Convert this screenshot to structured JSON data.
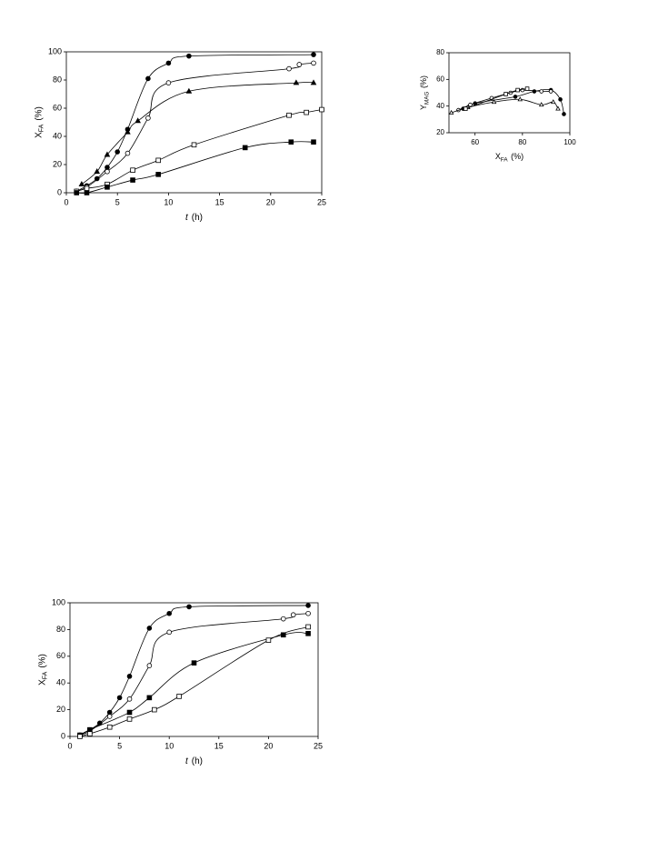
{
  "chart_data": [
    {
      "type": "line",
      "xlabel": {
        "main": "t",
        "unit": "(h)"
      },
      "ylabel": {
        "main": "X",
        "sub": "FA",
        "unit": "(%)"
      },
      "xlim": [
        0,
        25
      ],
      "xticks": [
        0,
        5,
        10,
        15,
        20,
        25
      ],
      "ylim": [
        0,
        100
      ],
      "yticks": [
        0,
        20,
        40,
        60,
        80,
        100
      ],
      "series": [
        {
          "marker": "circle",
          "filled": true,
          "color": "#000000",
          "x": [
            1,
            2,
            3,
            4,
            5,
            6,
            8,
            10,
            12,
            24.2
          ],
          "values": [
            1,
            5,
            10,
            18,
            29,
            45,
            81,
            92,
            97,
            98
          ]
        },
        {
          "marker": "circle",
          "filled": false,
          "color": "#000000",
          "x": [
            1,
            2,
            4,
            6,
            8,
            10,
            21.8,
            22.8,
            24.2
          ],
          "values": [
            1,
            4,
            15,
            28,
            53,
            78,
            88,
            91,
            92
          ]
        },
        {
          "marker": "triangle",
          "filled": true,
          "color": "#000000",
          "x": [
            1.5,
            3,
            4,
            6,
            7,
            12,
            22.5,
            24.2
          ],
          "values": [
            6,
            15,
            27,
            43,
            51,
            72,
            78,
            78
          ]
        },
        {
          "marker": "square",
          "filled": false,
          "color": "#000000",
          "x": [
            1,
            2,
            4,
            6.5,
            9,
            12.5,
            21.8,
            23.5,
            25
          ],
          "values": [
            1,
            3,
            6,
            16,
            23,
            34,
            55,
            57,
            59
          ]
        },
        {
          "marker": "square",
          "filled": true,
          "color": "#000000",
          "x": [
            1,
            2,
            4,
            6.5,
            9,
            17.5,
            22,
            24.2
          ],
          "values": [
            0,
            0,
            4,
            9,
            13,
            32,
            36,
            36
          ]
        }
      ]
    },
    {
      "type": "line",
      "xlabel": {
        "main": "X",
        "sub": "FA",
        "unit": "(%)"
      },
      "ylabel": {
        "main": "Y",
        "sub": "MAG",
        "unit": "(%)"
      },
      "xlim": [
        49,
        100
      ],
      "xticks": [
        60,
        80,
        100
      ],
      "ylim": [
        20,
        80
      ],
      "yticks": [
        20,
        40,
        60,
        80
      ],
      "series": [
        {
          "marker": "circle",
          "filled": true,
          "color": "#000000",
          "x": [
            55,
            60,
            77,
            85,
            92,
            96,
            97.5
          ],
          "values": [
            38,
            42,
            47,
            51,
            52,
            45,
            34
          ]
        },
        {
          "marker": "circle",
          "filled": false,
          "color": "#000000",
          "x": [
            53,
            58,
            67,
            75,
            80,
            88,
            92
          ],
          "values": [
            37,
            41,
            46,
            50,
            52,
            51,
            51
          ]
        },
        {
          "marker": "triangle",
          "filled": false,
          "color": "#000000",
          "x": [
            50,
            57,
            68,
            79,
            88,
            93,
            95
          ],
          "values": [
            35,
            39,
            43,
            45,
            41,
            43,
            38
          ]
        },
        {
          "marker": "square",
          "filled": false,
          "color": "#000000",
          "x": [
            56,
            73,
            78,
            82
          ],
          "values": [
            38,
            49,
            52,
            53
          ]
        }
      ]
    },
    {
      "type": "line",
      "xlabel": {
        "main": "t",
        "unit": "(h)"
      },
      "ylabel": {
        "main": "X",
        "sub": "FA",
        "unit": "(%)"
      },
      "xlim": [
        0,
        25
      ],
      "xticks": [
        0,
        5,
        10,
        15,
        20,
        25
      ],
      "ylim": [
        0,
        100
      ],
      "yticks": [
        0,
        20,
        40,
        60,
        80,
        100
      ],
      "series": [
        {
          "marker": "circle",
          "filled": true,
          "color": "#000000",
          "x": [
            1,
            2,
            3,
            4,
            5,
            6,
            8,
            10,
            12,
            24
          ],
          "values": [
            1,
            5,
            10,
            18,
            29,
            45,
            81,
            92,
            97,
            98
          ]
        },
        {
          "marker": "circle",
          "filled": false,
          "color": "#000000",
          "x": [
            1,
            2,
            4,
            6,
            8,
            10,
            21.5,
            22.5,
            24
          ],
          "values": [
            1,
            4,
            15,
            28,
            53,
            78,
            88,
            91,
            92
          ]
        },
        {
          "marker": "square",
          "filled": true,
          "color": "#000000",
          "x": [
            1,
            2,
            6,
            8,
            12.5,
            21.5,
            24
          ],
          "values": [
            1,
            5,
            18,
            29,
            55,
            76,
            77
          ]
        },
        {
          "marker": "square",
          "filled": false,
          "color": "#000000",
          "x": [
            1,
            2,
            4,
            6,
            8.5,
            11,
            20,
            24
          ],
          "values": [
            0,
            2,
            7,
            13,
            20,
            30,
            72,
            82
          ]
        }
      ]
    }
  ]
}
